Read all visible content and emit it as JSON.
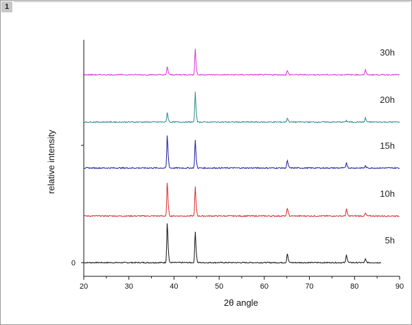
{
  "panel_label": "1",
  "chart_data": {
    "type": "line",
    "title": "",
    "xlabel": "2θ angle",
    "ylabel": "relative intensity",
    "xlim": [
      20,
      90
    ],
    "x_ticks": [
      20,
      30,
      40,
      50,
      60,
      70,
      80,
      90
    ],
    "y_tick_labels": [
      {
        "value": 0,
        "label": "0"
      }
    ],
    "grid": false,
    "legend": "inline labels at right of each trace",
    "stacked": true,
    "series": [
      {
        "name": "5h",
        "color": "#111111",
        "offset": 0,
        "peaks": [
          {
            "x": 38.5,
            "height": 58
          },
          {
            "x": 44.7,
            "height": 45
          },
          {
            "x": 65.1,
            "height": 13
          },
          {
            "x": 78.2,
            "height": 12
          },
          {
            "x": 82.4,
            "height": 5
          }
        ]
      },
      {
        "name": "10h",
        "color": "#d42a2a",
        "offset": 68,
        "peaks": [
          {
            "x": 38.5,
            "height": 48
          },
          {
            "x": 44.7,
            "height": 42
          },
          {
            "x": 65.1,
            "height": 12
          },
          {
            "x": 78.2,
            "height": 10
          },
          {
            "x": 82.4,
            "height": 4
          }
        ]
      },
      {
        "name": "15h",
        "color": "#1a1a9a",
        "offset": 138,
        "peaks": [
          {
            "x": 38.5,
            "height": 47
          },
          {
            "x": 44.7,
            "height": 40
          },
          {
            "x": 65.1,
            "height": 11
          },
          {
            "x": 78.2,
            "height": 8
          },
          {
            "x": 82.4,
            "height": 3
          }
        ]
      },
      {
        "name": "20h",
        "color": "#2a8a8a",
        "offset": 205,
        "peaks": [
          {
            "x": 38.5,
            "height": 14
          },
          {
            "x": 44.7,
            "height": 43
          },
          {
            "x": 65.1,
            "height": 6
          },
          {
            "x": 78.2,
            "height": 2
          },
          {
            "x": 82.4,
            "height": 6
          }
        ]
      },
      {
        "name": "30h",
        "color": "#d433d4",
        "offset": 274,
        "peaks": [
          {
            "x": 38.5,
            "height": 12
          },
          {
            "x": 44.7,
            "height": 37
          },
          {
            "x": 65.1,
            "height": 6
          },
          {
            "x": 78.2,
            "height": 1
          },
          {
            "x": 82.4,
            "height": 7
          }
        ]
      }
    ]
  }
}
